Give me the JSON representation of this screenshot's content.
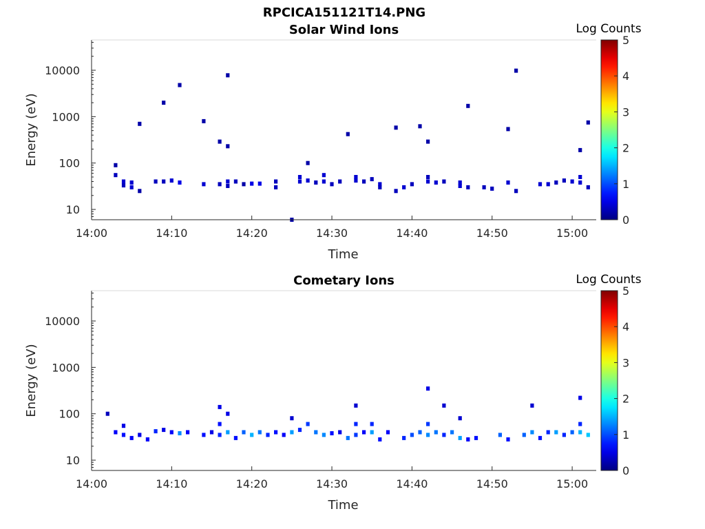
{
  "figure_title": "RPCICA151121T14.PNG",
  "chart_data": [
    {
      "type": "heatmap",
      "title": "Solar Wind Ions",
      "xlabel": "Time",
      "ylabel": "Energy (eV)",
      "yscale": "log",
      "xlim": [
        "14:00",
        "15:03"
      ],
      "ylim": [
        6,
        45000
      ],
      "x_tick_labels": [
        "14:00",
        "14:10",
        "14:20",
        "14:30",
        "14:40",
        "14:50",
        "15:00"
      ],
      "y_tick_labels": [
        "10",
        "100",
        "1000",
        "10000"
      ],
      "colorbar_label": "Log Counts",
      "colorbar_range": [
        0,
        5
      ],
      "colorbar_tick_labels": [
        "0",
        "1",
        "2",
        "3",
        "4",
        "5"
      ],
      "grid": false,
      "points": [
        [
          "14:03",
          90,
          0.2
        ],
        [
          "14:06",
          700,
          0.2
        ],
        [
          "14:09",
          2000,
          0.2
        ],
        [
          "14:11",
          4800,
          0.2
        ],
        [
          "14:14",
          800,
          0.2
        ],
        [
          "14:16",
          290,
          0.2
        ],
        [
          "14:17",
          230,
          0.2
        ],
        [
          "14:17",
          7800,
          0.2
        ],
        [
          "14:27",
          100,
          0.2
        ],
        [
          "14:32",
          420,
          0.2
        ],
        [
          "14:38",
          580,
          0.2
        ],
        [
          "14:41",
          620,
          0.2
        ],
        [
          "14:42",
          290,
          0.2
        ],
        [
          "14:47",
          1700,
          0.2
        ],
        [
          "14:52",
          540,
          0.2
        ],
        [
          "14:53",
          9800,
          0.2
        ],
        [
          "15:01",
          190,
          0.2
        ],
        [
          "15:02",
          750,
          0.2
        ],
        [
          "14:25",
          6,
          0.2
        ],
        [
          "14:03",
          55,
          0.3
        ],
        [
          "14:04",
          40,
          0.4
        ],
        [
          "14:04",
          33,
          0.3
        ],
        [
          "14:05",
          30,
          0.4
        ],
        [
          "14:05",
          38,
          0.4
        ],
        [
          "14:06",
          25,
          0.2
        ],
        [
          "14:08",
          40,
          0.3
        ],
        [
          "14:09",
          40,
          0.3
        ],
        [
          "14:10",
          42,
          0.4
        ],
        [
          "14:11",
          38,
          0.5
        ],
        [
          "14:14",
          35,
          0.4
        ],
        [
          "14:16",
          35,
          0.3
        ],
        [
          "14:17",
          40,
          0.4
        ],
        [
          "14:17",
          32,
          0.3
        ],
        [
          "14:18",
          40,
          0.3
        ],
        [
          "14:19",
          35,
          0.2
        ],
        [
          "14:20",
          36,
          0.5
        ],
        [
          "14:21",
          36,
          0.5
        ],
        [
          "14:23",
          30,
          0.3
        ],
        [
          "14:23",
          40,
          0.3
        ],
        [
          "14:26",
          50,
          0.4
        ],
        [
          "14:26",
          40,
          0.4
        ],
        [
          "14:27",
          42,
          0.4
        ],
        [
          "14:28",
          38,
          0.3
        ],
        [
          "14:29",
          55,
          0.4
        ],
        [
          "14:29",
          40,
          0.4
        ],
        [
          "14:30",
          35,
          0.3
        ],
        [
          "14:31",
          40,
          0.3
        ],
        [
          "14:33",
          50,
          0.4
        ],
        [
          "14:33",
          42,
          0.4
        ],
        [
          "14:34",
          40,
          0.3
        ],
        [
          "14:35",
          45,
          0.3
        ],
        [
          "14:36",
          35,
          0.4
        ],
        [
          "14:36",
          30,
          0.3
        ],
        [
          "14:38",
          25,
          0.3
        ],
        [
          "14:39",
          30,
          0.4
        ],
        [
          "14:40",
          35,
          0.3
        ],
        [
          "14:42",
          40,
          0.4
        ],
        [
          "14:42",
          50,
          0.3
        ],
        [
          "14:43",
          38,
          0.4
        ],
        [
          "14:44",
          40,
          0.3
        ],
        [
          "14:46",
          38,
          0.4
        ],
        [
          "14:46",
          32,
          0.4
        ],
        [
          "14:47",
          30,
          0.3
        ],
        [
          "14:49",
          30,
          0.3
        ],
        [
          "14:50",
          28,
          0.3
        ],
        [
          "14:52",
          38,
          0.4
        ],
        [
          "14:53",
          25,
          0.3
        ],
        [
          "14:56",
          35,
          0.4
        ],
        [
          "14:57",
          35,
          0.4
        ],
        [
          "14:58",
          38,
          0.3
        ],
        [
          "14:59",
          42,
          0.3
        ],
        [
          "15:00",
          40,
          0.4
        ],
        [
          "15:01",
          50,
          0.4
        ],
        [
          "15:01",
          38,
          0.4
        ],
        [
          "15:02",
          30,
          0.3
        ]
      ]
    },
    {
      "type": "heatmap",
      "title": "Cometary Ions",
      "xlabel": "Time",
      "ylabel": "Energy (eV)",
      "yscale": "log",
      "xlim": [
        "14:00",
        "15:03"
      ],
      "ylim": [
        6,
        45000
      ],
      "x_tick_labels": [
        "14:00",
        "14:10",
        "14:20",
        "14:30",
        "14:40",
        "14:50",
        "15:00"
      ],
      "y_tick_labels": [
        "10",
        "100",
        "1000",
        "10000"
      ],
      "colorbar_label": "Log Counts",
      "colorbar_range": [
        0,
        5
      ],
      "colorbar_tick_labels": [
        "0",
        "1",
        "2",
        "3",
        "4",
        "5"
      ],
      "grid": false,
      "points": [
        [
          "14:02",
          100,
          0.3
        ],
        [
          "14:03",
          40,
          0.6
        ],
        [
          "14:04",
          55,
          0.5
        ],
        [
          "14:04",
          35,
          0.7
        ],
        [
          "14:05",
          30,
          0.6
        ],
        [
          "14:06",
          35,
          0.5
        ],
        [
          "14:07",
          28,
          0.6
        ],
        [
          "14:08",
          42,
          0.8
        ],
        [
          "14:09",
          45,
          0.5
        ],
        [
          "14:10",
          40,
          0.6
        ],
        [
          "14:11",
          38,
          1.3
        ],
        [
          "14:12",
          40,
          0.6
        ],
        [
          "14:14",
          35,
          0.7
        ],
        [
          "14:15",
          40,
          0.5
        ],
        [
          "14:16",
          35,
          0.8
        ],
        [
          "14:16",
          60,
          0.7
        ],
        [
          "14:17",
          100,
          0.5
        ],
        [
          "14:17",
          40,
          1.4
        ],
        [
          "14:18",
          30,
          0.7
        ],
        [
          "14:19",
          40,
          1.1
        ],
        [
          "14:20",
          35,
          1.5
        ],
        [
          "14:21",
          40,
          1.2
        ],
        [
          "14:22",
          35,
          0.8
        ],
        [
          "14:23",
          40,
          0.7
        ],
        [
          "14:24",
          35,
          0.6
        ],
        [
          "14:25",
          40,
          1.4
        ],
        [
          "14:26",
          45,
          0.8
        ],
        [
          "14:27",
          60,
          0.9
        ],
        [
          "14:28",
          40,
          1.2
        ],
        [
          "14:29",
          35,
          1.3
        ],
        [
          "14:30",
          38,
          0.7
        ],
        [
          "14:31",
          40,
          0.5
        ],
        [
          "14:32",
          30,
          1.2
        ],
        [
          "14:33",
          60,
          0.8
        ],
        [
          "14:33",
          35,
          0.9
        ],
        [
          "14:34",
          40,
          0.6
        ],
        [
          "14:35",
          60,
          0.8
        ],
        [
          "14:35",
          40,
          1.4
        ],
        [
          "14:36",
          28,
          0.7
        ],
        [
          "14:37",
          40,
          0.6
        ],
        [
          "14:39",
          30,
          0.8
        ],
        [
          "14:40",
          35,
          1.0
        ],
        [
          "14:41",
          40,
          1.1
        ],
        [
          "14:42",
          60,
          0.9
        ],
        [
          "14:42",
          35,
          1.3
        ],
        [
          "14:43",
          40,
          1.2
        ],
        [
          "14:44",
          35,
          0.8
        ],
        [
          "14:45",
          40,
          1.2
        ],
        [
          "14:46",
          30,
          1.4
        ],
        [
          "14:47",
          28,
          0.6
        ],
        [
          "14:48",
          30,
          0.7
        ],
        [
          "14:51",
          35,
          1.1
        ],
        [
          "14:52",
          28,
          0.7
        ],
        [
          "14:54",
          35,
          1.1
        ],
        [
          "14:55",
          40,
          1.3
        ],
        [
          "14:56",
          30,
          0.7
        ],
        [
          "14:57",
          40,
          0.8
        ],
        [
          "14:58",
          40,
          1.4
        ],
        [
          "14:59",
          35,
          0.8
        ],
        [
          "15:00",
          40,
          1.1
        ],
        [
          "15:01",
          60,
          0.8
        ],
        [
          "15:01",
          40,
          1.5
        ],
        [
          "15:02",
          35,
          1.6
        ],
        [
          "14:42",
          350,
          0.5
        ],
        [
          "14:44",
          150,
          0.4
        ],
        [
          "14:46",
          80,
          0.4
        ],
        [
          "14:55",
          150,
          0.4
        ],
        [
          "14:33",
          150,
          0.4
        ],
        [
          "15:01",
          220,
          0.5
        ],
        [
          "14:16",
          140,
          0.5
        ],
        [
          "14:25",
          80,
          0.4
        ]
      ]
    }
  ]
}
